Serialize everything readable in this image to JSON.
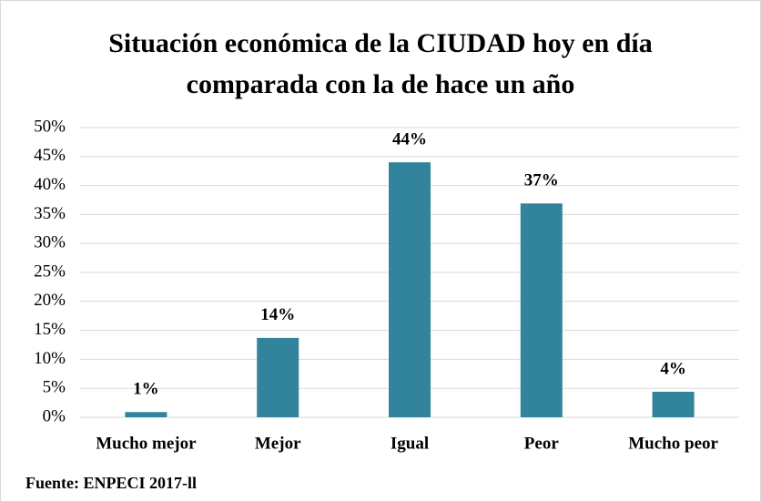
{
  "chart_data": {
    "type": "bar",
    "title": [
      "Situación económica de la CIUDAD hoy en día",
      "comparada con la de hace un año"
    ],
    "categories": [
      "Mucho mejor",
      "Mejor",
      "Igual",
      "Peor",
      "Mucho peor"
    ],
    "values": [
      0.9,
      13.7,
      44,
      36.9,
      4.4
    ],
    "value_labels": [
      "1%",
      "14%",
      "44%",
      "37%",
      "4%"
    ],
    "color": "#31849b",
    "ylim": [
      0,
      50
    ],
    "yticks": [
      {
        "value": 0,
        "label": "0%"
      },
      {
        "value": 5,
        "label": "5%"
      },
      {
        "value": 10,
        "label": "10%"
      },
      {
        "value": 15,
        "label": "15%"
      },
      {
        "value": 20,
        "label": "20%"
      },
      {
        "value": 25,
        "label": "25%"
      },
      {
        "value": 30,
        "label": "30%"
      },
      {
        "value": 35,
        "label": "35%"
      },
      {
        "value": 40,
        "label": "40%"
      },
      {
        "value": 45,
        "label": "45%"
      },
      {
        "value": 50,
        "label": "50%"
      }
    ],
    "grid": true,
    "source": "Fuente: ENPECI 2017-ll"
  }
}
